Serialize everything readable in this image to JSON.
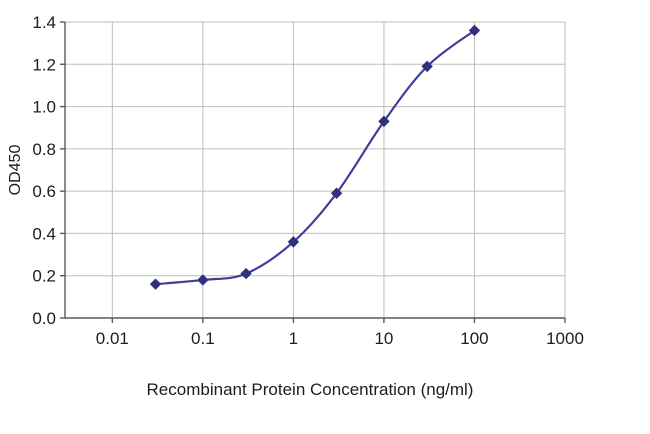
{
  "page": {
    "background": "#ffffff"
  },
  "chart_data": {
    "type": "line",
    "title": "",
    "xlabel": "Recombinant Protein Concentration (ng/ml)",
    "ylabel": "OD450",
    "x_scale": "log",
    "x": [
      0.03,
      0.1,
      0.3,
      1,
      3,
      10,
      30,
      100
    ],
    "y": [
      0.16,
      0.18,
      0.21,
      0.36,
      0.59,
      0.93,
      1.19,
      1.36
    ],
    "xlim": [
      0.003,
      1000
    ],
    "ylim": [
      0,
      1.4
    ],
    "x_ticks": [
      0.01,
      0.1,
      1,
      10,
      100,
      1000
    ],
    "x_tick_labels": [
      "0.01",
      "0.1",
      "1",
      "10",
      "100",
      "1000"
    ],
    "y_ticks": [
      0,
      0.2,
      0.4,
      0.6,
      0.8,
      1.0,
      1.2,
      1.4
    ],
    "y_tick_labels": [
      "0.0",
      "0.2",
      "0.4",
      "0.6",
      "0.8",
      "1.0",
      "1.2",
      "1.4"
    ],
    "grid": true,
    "legend": false,
    "marker": "diamond",
    "smooth": true,
    "colors": {
      "line": "#3f3f99",
      "marker": "#30307e",
      "grid": "#bdbdbd",
      "axis": "#5a5a5a",
      "text": "#1d1d1d",
      "background": "#ffffff"
    }
  }
}
